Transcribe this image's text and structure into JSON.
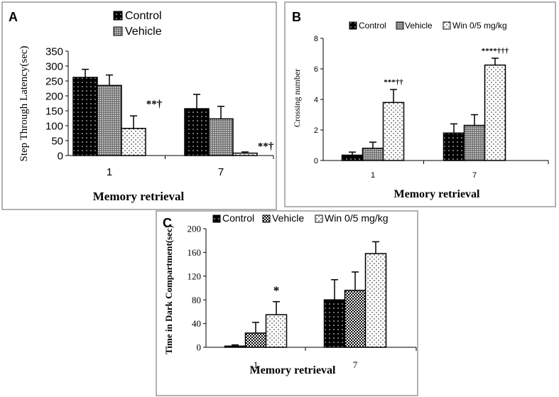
{
  "chart_data": [
    {
      "panel": "A",
      "type": "bar",
      "ylabel": "Step Through Latency(sec)",
      "xlabel": "Memory retrieval",
      "ylim": [
        0,
        350
      ],
      "yticks": [
        0,
        50,
        100,
        150,
        200,
        250,
        300,
        350
      ],
      "categories": [
        "1",
        "7"
      ],
      "legend": [
        "Control",
        "Vehicle"
      ],
      "legend_position": "top-center",
      "grid": false,
      "series": [
        {
          "name": "Control",
          "values": [
            262,
            157
          ],
          "errors": [
            27,
            48
          ]
        },
        {
          "name": "Vehicle",
          "values": [
            235,
            123
          ],
          "errors": [
            35,
            42
          ]
        },
        {
          "name": "",
          "values": [
            91,
            8
          ],
          "errors": [
            42,
            4
          ]
        }
      ],
      "annotations": [
        {
          "category": 0,
          "series": 2,
          "text": "**†"
        },
        {
          "category": 1,
          "series": 2,
          "text": "**†"
        }
      ]
    },
    {
      "panel": "B",
      "type": "bar",
      "ylabel": "Crossing number",
      "xlabel": "Memory retrieval",
      "ylim": [
        0,
        8
      ],
      "yticks": [
        0,
        2,
        4,
        6,
        8
      ],
      "categories": [
        "1",
        "7"
      ],
      "legend": [
        "Control",
        "Vehicle",
        "Win 0/5  mg/kg"
      ],
      "legend_position": "top",
      "grid": false,
      "series": [
        {
          "name": "Control",
          "values": [
            0.35,
            1.8
          ],
          "errors": [
            0.2,
            0.6
          ]
        },
        {
          "name": "Vehicle",
          "values": [
            0.8,
            2.3
          ],
          "errors": [
            0.4,
            0.7
          ]
        },
        {
          "name": "Win 0/5  mg/kg",
          "values": [
            3.8,
            6.25
          ],
          "errors": [
            0.85,
            0.45
          ]
        }
      ],
      "annotations": [
        {
          "category": 0,
          "series": 2,
          "text": "***††"
        },
        {
          "category": 1,
          "series": 2,
          "text": "****†††"
        }
      ]
    },
    {
      "panel": "C",
      "type": "bar",
      "ylabel": "Time in Dark Compartment(sec)",
      "xlabel": "Memory retrieval",
      "ylim": [
        0,
        200
      ],
      "yticks": [
        0,
        40,
        80,
        120,
        160,
        200
      ],
      "categories": [
        "1",
        "7"
      ],
      "legend": [
        "Control",
        "Vehicle",
        "Win 0/5  mg/kg"
      ],
      "legend_position": "top",
      "grid": false,
      "series": [
        {
          "name": "Control",
          "values": [
            2,
            80
          ],
          "errors": [
            2,
            34
          ]
        },
        {
          "name": "Vehicle",
          "values": [
            24,
            96
          ],
          "errors": [
            18,
            31
          ]
        },
        {
          "name": "Win 0/5  mg/kg",
          "values": [
            55,
            158
          ],
          "errors": [
            22,
            20
          ]
        }
      ],
      "annotations": [
        {
          "category": 0,
          "series": 2,
          "text": "*"
        }
      ]
    }
  ]
}
